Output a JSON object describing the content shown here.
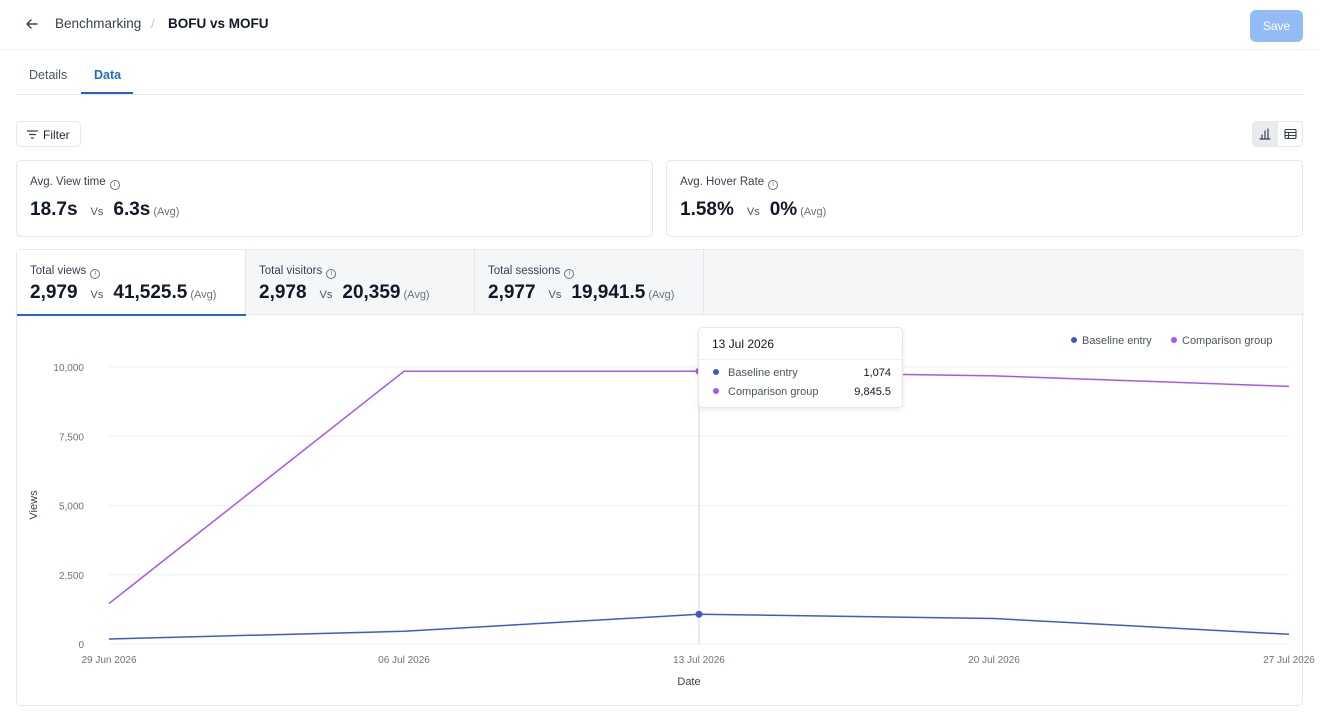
{
  "header": {
    "breadcrumb": "Benchmarking",
    "separator": "/",
    "title": "BOFU vs MOFU",
    "save_label": "Save"
  },
  "tabs": [
    {
      "label": "Details",
      "active": false
    },
    {
      "label": "Data",
      "active": true
    }
  ],
  "toolbar": {
    "filter_label": "Filter",
    "view_modes": [
      "chart",
      "table"
    ],
    "active_view": "chart"
  },
  "summary_cards": [
    {
      "label": "Avg. View time",
      "value": "18.7s",
      "vs": "Vs",
      "compare": "6.3s",
      "suffix": "(Avg)"
    },
    {
      "label": "Avg. Hover Rate",
      "value": "1.58%",
      "vs": "Vs",
      "compare": "0%",
      "suffix": "(Avg)"
    }
  ],
  "metric_tabs": [
    {
      "label": "Total views",
      "value": "2,979",
      "vs": "Vs",
      "compare": "41,525.5",
      "suffix": "(Avg)",
      "active": true
    },
    {
      "label": "Total visitors",
      "value": "2,978",
      "vs": "Vs",
      "compare": "20,359",
      "suffix": "(Avg)",
      "active": false
    },
    {
      "label": "Total sessions",
      "value": "2,977",
      "vs": "Vs",
      "compare": "19,941.5",
      "suffix": "(Avg)",
      "active": false
    }
  ],
  "legend": [
    {
      "name": "Baseline entry",
      "color": "#3b5bcc"
    },
    {
      "name": "Comparison group",
      "color": "#a855f7"
    }
  ],
  "tooltip": {
    "title": "13 Jul 2026",
    "rows": [
      {
        "name": "Baseline entry",
        "value": "1,074",
        "color": "#3b5bcc"
      },
      {
        "name": "Comparison group",
        "value": "9,845.5",
        "color": "#a855f7"
      }
    ]
  },
  "chart_data": {
    "type": "line",
    "x": [
      "2026-06-29",
      "2026-07-06",
      "2026-07-13",
      "2026-07-20",
      "2026-07-27"
    ],
    "x_tick_labels": [
      "29 Jun 2026",
      "06 Jul 2026",
      "13 Jul 2026",
      "20 Jul 2026",
      "27 Jul 2026"
    ],
    "series": [
      {
        "name": "Baseline entry",
        "color": "#3b5bcc",
        "values": [
          180,
          460,
          1074,
          920,
          350
        ]
      },
      {
        "name": "Comparison group",
        "color": "#a855f7",
        "values": [
          1460,
          9845.5,
          9845.5,
          9680,
          9300
        ]
      }
    ],
    "y_ticks": [
      0,
      2500,
      5000,
      7500,
      10000
    ],
    "y_tick_labels": [
      "0",
      "2,500",
      "5,000",
      "7,500",
      "10,000"
    ],
    "ylim": [
      0,
      10000
    ],
    "xlabel": "Date",
    "ylabel": "Views",
    "grid": true,
    "legend_position": "top-right",
    "highlight_index": 2
  }
}
